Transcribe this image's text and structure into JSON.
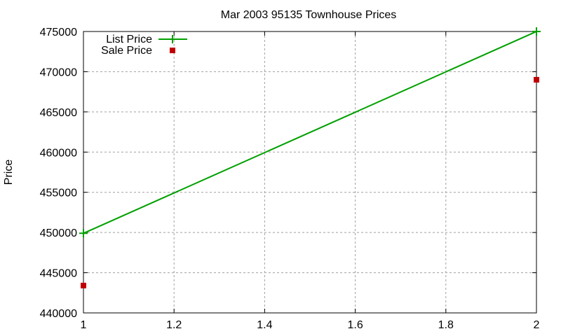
{
  "chart_data": {
    "type": "line",
    "title": "Mar 2003 95135 Townhouse Prices",
    "xlabel": "",
    "ylabel": "Price",
    "xlim": [
      1,
      2
    ],
    "ylim": [
      440000,
      475000
    ],
    "x_ticks": [
      "1",
      "1.2",
      "1.4",
      "1.6",
      "1.8",
      "2"
    ],
    "y_ticks": [
      "440000",
      "445000",
      "450000",
      "455000",
      "460000",
      "465000",
      "470000",
      "475000"
    ],
    "grid": true,
    "legend_position": "top-left",
    "series": [
      {
        "name": "List Price",
        "style": "linespoints",
        "color": "#00a000",
        "x": [
          1,
          2
        ],
        "y": [
          449900,
          475000
        ]
      },
      {
        "name": "Sale Price",
        "style": "points",
        "color": "#c00000",
        "x": [
          1,
          2
        ],
        "y": [
          443400,
          469000
        ]
      }
    ]
  }
}
